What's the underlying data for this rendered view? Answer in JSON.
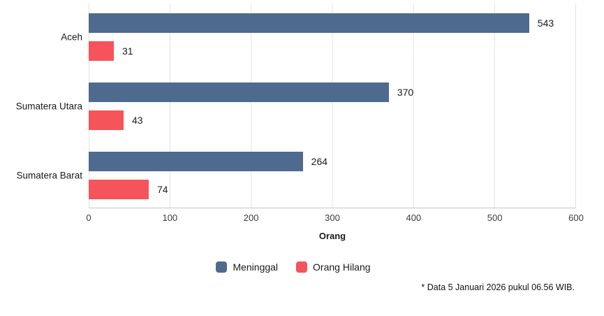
{
  "chart_data": {
    "type": "bar",
    "orientation": "horizontal",
    "title": "",
    "categories": [
      "Aceh",
      "Sumatera Utara",
      "Sumatera Barat"
    ],
    "series": [
      {
        "name": "Meninggal",
        "color": "#4f6a8f",
        "values": [
          543,
          370,
          264
        ]
      },
      {
        "name": "Orang Hilang",
        "color": "#f4545a",
        "values": [
          31,
          43,
          74
        ]
      }
    ],
    "xlabel": "Orang",
    "ylabel": "",
    "xlim": [
      0,
      600
    ],
    "x_ticks": [
      0,
      100,
      200,
      300,
      400,
      500,
      600
    ],
    "grid": "vertical-gridlines-on",
    "legend_position": "bottom-center",
    "bar_value_labels": true,
    "footnote": "* Data 5 Januari 2026 pukul 06.56 WIB."
  }
}
